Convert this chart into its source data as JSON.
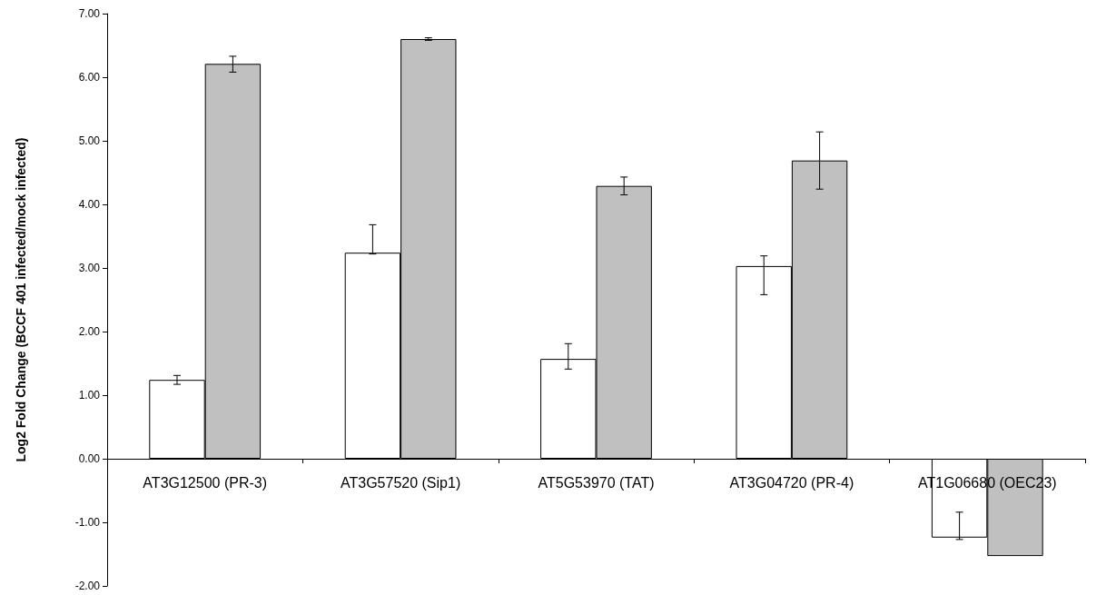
{
  "chart_data": {
    "type": "bar",
    "ylabel": "Log2 Fold Change (BCCF 401 infected/mock infected)",
    "categories": [
      "AT3G12500 (PR-3)",
      "AT3G57520 (Sip1)",
      "AT5G53970 (TAT)",
      "AT3G04720 (PR-4)",
      "AT1G06680 (OEC23)"
    ],
    "series": [
      {
        "color": "#ffffff",
        "values": [
          1.24,
          3.24,
          1.57,
          3.03,
          -1.24
        ],
        "errors": [
          [
            1.17,
            1.31
          ],
          [
            3.22,
            3.68
          ],
          [
            1.41,
            1.81
          ],
          [
            2.58,
            3.19
          ],
          [
            -1.27,
            -0.84
          ]
        ]
      },
      {
        "color": "#c0c0c0",
        "values": [
          6.21,
          6.6,
          4.29,
          4.69,
          -1.53
        ],
        "errors": [
          [
            6.08,
            6.33
          ],
          [
            6.58,
            6.62
          ],
          [
            4.15,
            4.43
          ],
          [
            4.24,
            5.14
          ],
          null
        ]
      }
    ],
    "ylim": [
      -2,
      7
    ],
    "yticks": [
      {
        "value": -2,
        "label": "-2.00"
      },
      {
        "value": -1,
        "label": "-1.00"
      },
      {
        "value": 0,
        "label": "0.00"
      },
      {
        "value": 1,
        "label": "1.00"
      },
      {
        "value": 2,
        "label": "2.00"
      },
      {
        "value": 3,
        "label": "3.00"
      },
      {
        "value": 4,
        "label": "4.00"
      },
      {
        "value": 5,
        "label": "5.00"
      },
      {
        "value": 6,
        "label": "6.00"
      },
      {
        "value": 7,
        "label": "7.00"
      }
    ]
  }
}
